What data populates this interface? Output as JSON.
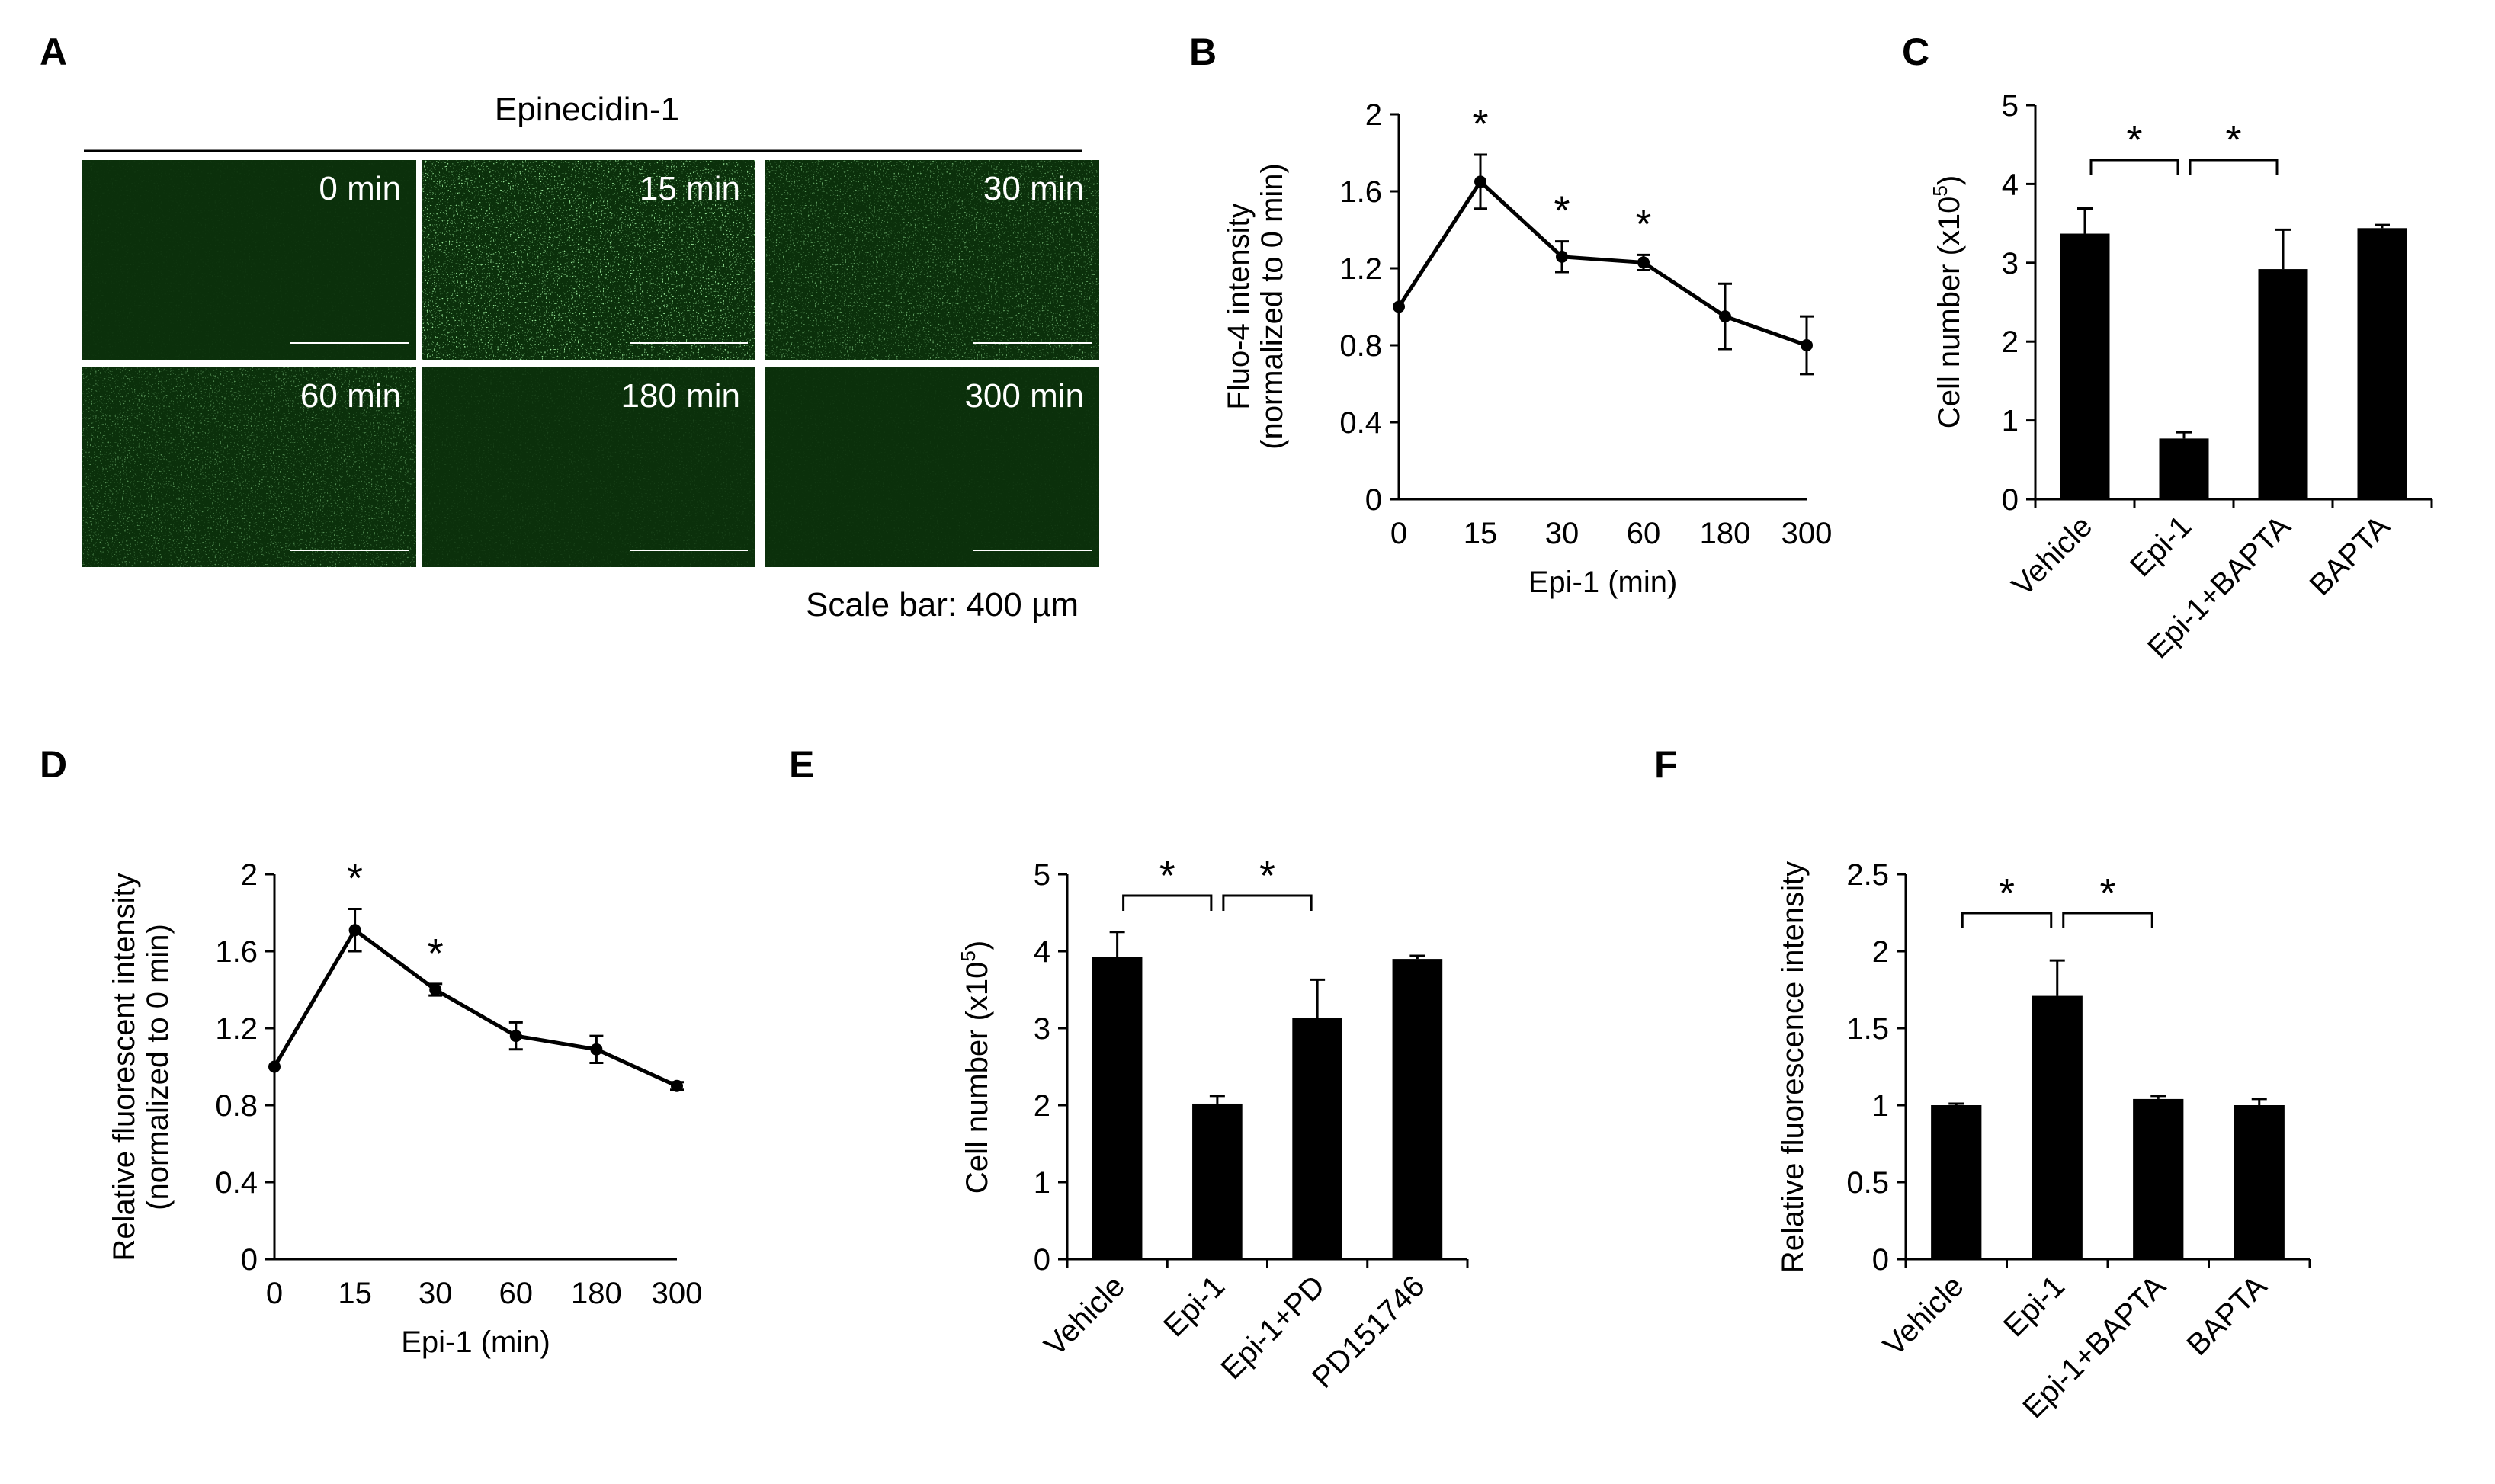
{
  "figure": {
    "panel_labels": [
      "A",
      "B",
      "C",
      "D",
      "E",
      "F"
    ]
  },
  "panel_a": {
    "title": "Epinecidin-1",
    "scale_bar_text": "Scale bar: 400 µm",
    "image_fill_color": "#0b300b",
    "cell_color": "#5fe05f",
    "tiles": [
      {
        "label": "0 min",
        "brightness": 0.04
      },
      {
        "label": "15 min",
        "brightness": 0.95
      },
      {
        "label": "30 min",
        "brightness": 0.6
      },
      {
        "label": "60 min",
        "brightness": 0.5
      },
      {
        "label": "180 min",
        "brightness": 0.1
      },
      {
        "label": "300 min",
        "brightness": 0.05
      }
    ]
  },
  "chart_data": [
    {
      "panel": "B",
      "type": "line",
      "categories": [
        "0",
        "15",
        "30",
        "60",
        "180",
        "300"
      ],
      "values": [
        1.0,
        1.65,
        1.26,
        1.23,
        0.95,
        0.8
      ],
      "errors": [
        0.0,
        0.14,
        0.08,
        0.04,
        0.17,
        0.15
      ],
      "significant": [
        false,
        true,
        true,
        true,
        false,
        false
      ],
      "xlabel": "Epi-1 (min)",
      "ylabel_lines": [
        "Fluo-4 intensity",
        "(normalized to 0 min)"
      ],
      "ylim": [
        0,
        2
      ],
      "yticks": [
        "0",
        "0.4",
        "0.8",
        "1.2",
        "1.6",
        "2"
      ],
      "color": "#000000"
    },
    {
      "panel": "C",
      "type": "bar",
      "categories": [
        "Vehicle",
        "Epi-1",
        "Epi-1+BAPTA",
        "BAPTA"
      ],
      "values": [
        3.37,
        0.77,
        2.92,
        3.44
      ],
      "errors": [
        0.32,
        0.08,
        0.5,
        0.04
      ],
      "ylabel": "Cell number (x10",
      "ylabel_sup": "5",
      "ylabel_end": ")",
      "ylim": [
        0,
        5
      ],
      "yticks": [
        "0",
        "1",
        "2",
        "3",
        "4",
        "5"
      ],
      "brackets": [
        {
          "from": 0,
          "to": 1,
          "label": "*"
        },
        {
          "from": 1,
          "to": 2,
          "label": "*"
        }
      ],
      "color": "#000000"
    },
    {
      "panel": "D",
      "type": "line",
      "categories": [
        "0",
        "15",
        "30",
        "60",
        "180",
        "300"
      ],
      "values": [
        1.0,
        1.71,
        1.4,
        1.16,
        1.09,
        0.9
      ],
      "errors": [
        0.0,
        0.11,
        0.03,
        0.07,
        0.07,
        0.02
      ],
      "significant": [
        false,
        true,
        true,
        false,
        false,
        false
      ],
      "xlabel": "Epi-1 (min)",
      "ylabel_lines": [
        "Relative fluorescent intensity",
        "(normalized to 0 min)"
      ],
      "ylim": [
        0,
        2
      ],
      "yticks": [
        "0",
        "0.4",
        "0.8",
        "1.2",
        "1.6",
        "2"
      ],
      "color": "#000000"
    },
    {
      "panel": "E",
      "type": "bar",
      "categories": [
        "Vehicle",
        "Epi-1",
        "Epi-1+PD",
        "PD151746"
      ],
      "values": [
        3.93,
        2.02,
        3.13,
        3.9
      ],
      "errors": [
        0.32,
        0.1,
        0.5,
        0.04
      ],
      "ylabel": "Cell number (x10",
      "ylabel_sup": "5",
      "ylabel_end": ")",
      "ylim": [
        0,
        5
      ],
      "yticks": [
        "0",
        "1",
        "2",
        "3",
        "4",
        "5"
      ],
      "brackets": [
        {
          "from": 0,
          "to": 1,
          "label": "*"
        },
        {
          "from": 1,
          "to": 2,
          "label": "*"
        }
      ],
      "color": "#000000"
    },
    {
      "panel": "F",
      "type": "bar",
      "categories": [
        "Vehicle",
        "Epi-1",
        "Epi-1+BAPTA",
        "BAPTA"
      ],
      "values": [
        1.0,
        1.71,
        1.04,
        1.0
      ],
      "errors": [
        0.01,
        0.23,
        0.02,
        0.04
      ],
      "ylabel": "Relative fluorescence intensity",
      "ylim": [
        0,
        2.5
      ],
      "yticks": [
        "0",
        "0.5",
        "1",
        "1.5",
        "2",
        "2.5"
      ],
      "brackets": [
        {
          "from": 0,
          "to": 1,
          "label": "*"
        },
        {
          "from": 1,
          "to": 2,
          "label": "*"
        }
      ],
      "color": "#000000"
    }
  ]
}
